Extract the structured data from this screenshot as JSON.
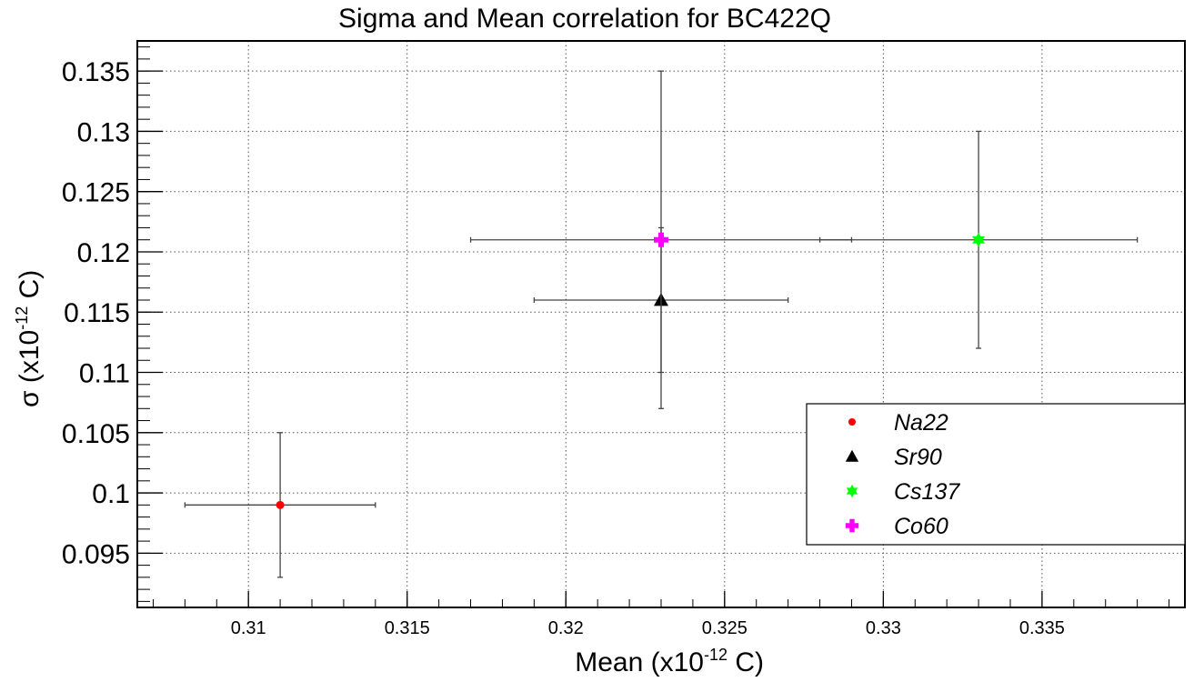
{
  "chart_data": {
    "type": "scatter",
    "title": "Sigma and Mean correlation for BC422Q",
    "xlabel": {
      "prefix": "Mean (x10",
      "exponent": "-12",
      "suffix": " C)"
    },
    "ylabel": {
      "prefix": "σ (x10",
      "exponent": "-12",
      "suffix": " C)"
    },
    "xlim": [
      0.3065,
      0.3395
    ],
    "ylim": [
      0.0905,
      0.1375
    ],
    "x_ticks": [
      {
        "value": 0.31,
        "label": "0.31"
      },
      {
        "value": 0.315,
        "label": "0.315"
      },
      {
        "value": 0.32,
        "label": "0.32"
      },
      {
        "value": 0.325,
        "label": "0.325"
      },
      {
        "value": 0.33,
        "label": "0.33"
      },
      {
        "value": 0.335,
        "label": "0.335"
      }
    ],
    "y_ticks": [
      {
        "value": 0.095,
        "label": "0.095"
      },
      {
        "value": 0.1,
        "label": "0.1"
      },
      {
        "value": 0.105,
        "label": "0.105"
      },
      {
        "value": 0.11,
        "label": "0.11"
      },
      {
        "value": 0.115,
        "label": "0.115"
      },
      {
        "value": 0.12,
        "label": "0.12"
      },
      {
        "value": 0.125,
        "label": "0.125"
      },
      {
        "value": 0.13,
        "label": "0.13"
      },
      {
        "value": 0.135,
        "label": "0.135"
      }
    ],
    "grid": true,
    "legend_position": "lower-right",
    "series": [
      {
        "name": "Na22",
        "marker": "circle",
        "color": "#ff0000",
        "x": 0.311,
        "y": 0.099,
        "x_err_low": 0.003,
        "x_err_high": 0.003,
        "y_err_low": 0.006,
        "y_err_high": 0.006
      },
      {
        "name": "Sr90",
        "marker": "triangle",
        "color": "#000000",
        "x": 0.323,
        "y": 0.116,
        "x_err_low": 0.004,
        "x_err_high": 0.004,
        "y_err_low": 0.009,
        "y_err_high": 0.006
      },
      {
        "name": "Cs137",
        "marker": "star",
        "color": "#00ff00",
        "x": 0.333,
        "y": 0.121,
        "x_err_low": 0.005,
        "x_err_high": 0.005,
        "y_err_low": 0.009,
        "y_err_high": 0.009
      },
      {
        "name": "Co60",
        "marker": "cross",
        "color": "#ff00ff",
        "x": 0.323,
        "y": 0.121,
        "x_err_low": 0.006,
        "x_err_high": 0.006,
        "y_err_low": 0.011,
        "y_err_high": 0.014
      }
    ]
  }
}
